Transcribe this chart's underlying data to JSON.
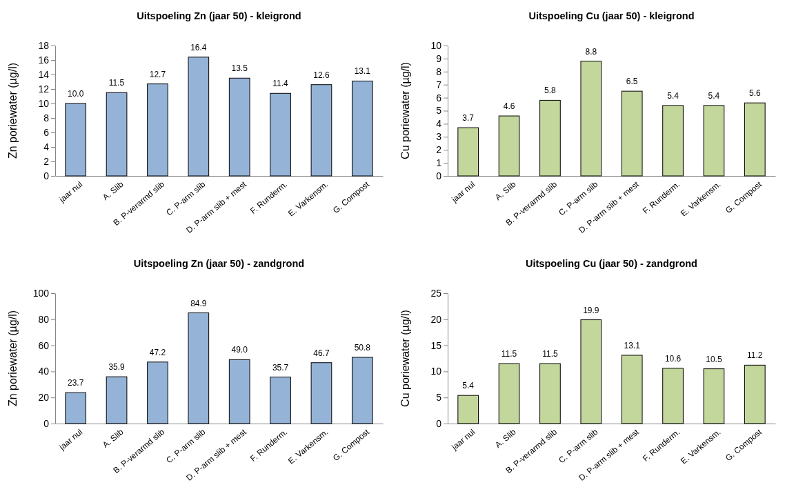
{
  "chart_data": [
    {
      "type": "bar",
      "title": "Uitspoeling Zn (jaar 50) - kleigrond",
      "ylabel": "Zn poriewater (µg/l)",
      "categories": [
        "jaar nul",
        "A. Slib",
        "B. P-verarmd slib",
        "C. P-arm slib",
        "D. P-arm slib + mest",
        "F. Runderm.",
        "E. Varkensm.",
        "G. Compost"
      ],
      "values": [
        10.0,
        11.5,
        12.7,
        16.4,
        13.5,
        11.4,
        12.6,
        13.1
      ],
      "value_labels": [
        "10.0",
        "11.5",
        "12.7",
        "16.4",
        "13.5",
        "11.4",
        "12.6",
        "13.1"
      ],
      "color": "#95b3d7",
      "ylim": [
        0,
        18
      ],
      "yticks": [
        0,
        2,
        4,
        6,
        8,
        10,
        12,
        14,
        16,
        18
      ]
    },
    {
      "type": "bar",
      "title": "Uitspoeling Cu (jaar 50) - kleigrond",
      "ylabel": "Cu poriewater (µg/l)",
      "categories": [
        "jaar nul",
        "A. Slib",
        "B. P-verarmd slib",
        "C. P-arm slib",
        "D. P-arm slib + mest",
        "F. Runderm.",
        "E. Varkensm.",
        "G. Compost"
      ],
      "values": [
        3.7,
        4.6,
        5.8,
        8.8,
        6.5,
        5.4,
        5.4,
        5.6
      ],
      "value_labels": [
        "3.7",
        "4.6",
        "5.8",
        "8.8",
        "6.5",
        "5.4",
        "5.4",
        "5.6"
      ],
      "color": "#c3d69b",
      "ylim": [
        0,
        10
      ],
      "yticks": [
        0,
        1,
        2,
        3,
        4,
        5,
        6,
        7,
        8,
        9,
        10
      ]
    },
    {
      "type": "bar",
      "title": "Uitspoeling Zn (jaar 50) - zandgrond",
      "ylabel": "Zn poriewater (µg/l)",
      "categories": [
        "jaar nul",
        "A. Slib",
        "B. P-verarmd slib",
        "C. P-arm slib",
        "D. P-arm slib + mest",
        "F. Runderm.",
        "E. Varkensm.",
        "G. Compost"
      ],
      "values": [
        23.7,
        35.9,
        47.2,
        84.9,
        49.0,
        35.7,
        46.7,
        50.8
      ],
      "value_labels": [
        "23.7",
        "35.9",
        "47.2",
        "84.9",
        "49.0",
        "35.7",
        "46.7",
        "50.8"
      ],
      "color": "#95b3d7",
      "ylim": [
        0,
        100
      ],
      "yticks": [
        0,
        20,
        40,
        60,
        80,
        100
      ]
    },
    {
      "type": "bar",
      "title": "Uitspoeling Cu (jaar 50) - zandgrond",
      "ylabel": "Cu poriewater (µg/l)",
      "categories": [
        "jaar nul",
        "A. Slib",
        "B. P-verarmd slib",
        "C. P-arm slib",
        "D. P-arm slib + mest",
        "F. Runderm.",
        "E. Varkensm.",
        "G. Compost"
      ],
      "values": [
        5.4,
        11.5,
        11.5,
        19.9,
        13.1,
        10.6,
        10.5,
        11.2
      ],
      "value_labels": [
        "5.4",
        "11.5",
        "11.5",
        "19.9",
        "13.1",
        "10.6",
        "10.5",
        "11.2"
      ],
      "color": "#c3d69b",
      "ylim": [
        0,
        25
      ],
      "yticks": [
        0,
        5,
        10,
        15,
        20,
        25
      ]
    }
  ]
}
